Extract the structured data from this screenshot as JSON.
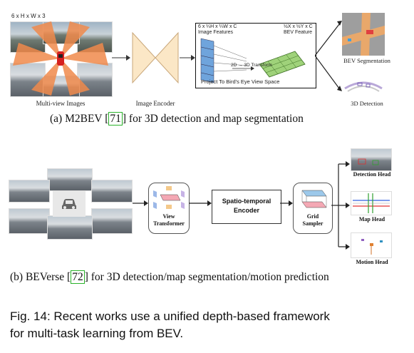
{
  "top": {
    "input_dims": "6 x H x W x 3",
    "multiview_label": "Multi-view Images",
    "encoder_label": "Image Encoder",
    "image_features_dims": "6 x ¼H x ¼W x C",
    "image_features_label": "Image Features",
    "bev_feature_dims": "½X x ½Y x C",
    "bev_feature_label": "BEV Feature",
    "transform_label": "2D → 3D Transform",
    "project_label": "Project To Bird's Eye View Space",
    "bev_seg_label": "BEV Segmentation",
    "det3d_label": "3D Detection",
    "caption_prefix": "(a)  M2BEV [",
    "caption_ref": "71",
    "caption_suffix": "] for 3D detection and map segmentation"
  },
  "bottom": {
    "view_transformer_label_1": "View",
    "view_transformer_label_2": "Transformer",
    "encoder_label_1": "Spatio-temporal",
    "encoder_label_2": "Encoder",
    "grid_sampler_label_1": "Grid",
    "grid_sampler_label_2": "Sampler",
    "detection_head": "Detection Head",
    "map_head": "Map Head",
    "motion_head": "Motion Head",
    "caption_prefix": "(b)  BEVerse [",
    "caption_ref": "72",
    "caption_suffix": "] for 3D detection/map segmentation/motion prediction"
  },
  "figure_caption_line1": "Fig. 14: Recent works use a unified depth-based framework",
  "figure_caption_line2": "for multi-task learning from BEV."
}
